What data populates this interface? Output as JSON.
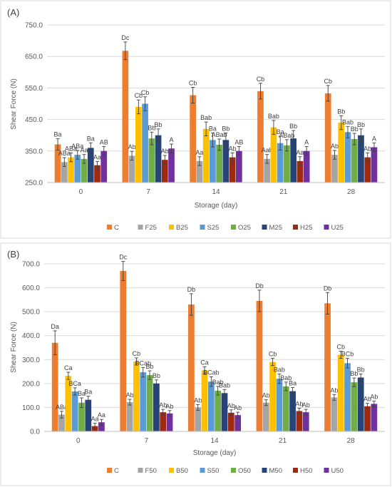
{
  "colors": {
    "C": "#ED7D31",
    "F": "#A5A5A5",
    "B": "#FFC000",
    "S": "#5B9BD5",
    "O": "#70AD47",
    "M": "#264478",
    "H": "#9E2A12",
    "U": "#7030A0",
    "error": "#404040"
  },
  "chart_data": [
    {
      "type": "bar",
      "panel_label": "(A)",
      "xlabel": "Storage (day)",
      "ylabel": "Shear Force (N)",
      "ylim": [
        250,
        750
      ],
      "yticks": [
        "250.0",
        "350.0",
        "450.0",
        "550.0",
        "650.0",
        "750.0"
      ],
      "ytick_values": [
        250,
        350,
        450,
        550,
        650,
        750
      ],
      "grid": true,
      "legend_position": "bottom",
      "categories": [
        "0",
        "7",
        "14",
        "21",
        "28"
      ],
      "series": [
        {
          "name": "C",
          "color_key": "C",
          "values": [
            371,
            668,
            527,
            540,
            533
          ],
          "errors": [
            18,
            28,
            25,
            25,
            25
          ],
          "labels": [
            "Ba",
            "Dc",
            "Cb",
            "Cb",
            "Cb"
          ]
        },
        {
          "name": "F25",
          "color_key": "F",
          "values": [
            315,
            335,
            318,
            325,
            338
          ],
          "errors": [
            14,
            14,
            14,
            14,
            14
          ],
          "labels": [
            "ABa",
            "Ab",
            "Aa",
            "Aab",
            "Ab"
          ]
        },
        {
          "name": "B25",
          "color_key": "B",
          "values": [
            330,
            490,
            420,
            425,
            440
          ],
          "errors": [
            14,
            22,
            22,
            22,
            22
          ],
          "labels": [
            "ABa",
            "Cb",
            "Bab",
            "Bab",
            "Bb"
          ]
        },
        {
          "name": "S25",
          "color_key": "S",
          "values": [
            338,
            500,
            385,
            375,
            410
          ],
          "errors": [
            14,
            22,
            22,
            22,
            18
          ],
          "labels": [
            "ABa",
            "Cb",
            "Ba",
            "Ba",
            "Bab"
          ]
        },
        {
          "name": "O25",
          "color_key": "O",
          "values": [
            325,
            390,
            370,
            368,
            388
          ],
          "errors": [
            14,
            20,
            18,
            18,
            18
          ],
          "labels": [
            "Aa",
            "Bb",
            "ABab",
            "ABab",
            "Bb"
          ]
        },
        {
          "name": "M25",
          "color_key": "M",
          "values": [
            360,
            400,
            385,
            390,
            400
          ],
          "errors": [
            16,
            20,
            22,
            25,
            20
          ],
          "labels": [
            "Ba",
            "Bb",
            "Bb",
            "Bb",
            "Bb"
          ]
        },
        {
          "name": "H25",
          "color_key": "H",
          "values": [
            305,
            322,
            330,
            318,
            330
          ],
          "errors": [
            12,
            14,
            14,
            14,
            14
          ],
          "labels": [
            "Aa",
            "Ab",
            "Ab",
            "Aa",
            "Ab"
          ]
        },
        {
          "name": "U25",
          "color_key": "U",
          "values": [
            350,
            358,
            350,
            350,
            362
          ],
          "errors": [
            14,
            14,
            14,
            14,
            14
          ],
          "labels": [
            "AB",
            "A",
            "AB",
            "A",
            "A"
          ]
        }
      ]
    },
    {
      "type": "bar",
      "panel_label": "(B)",
      "xlabel": "Storage (day)",
      "ylabel": "Shear Force (N)",
      "ylim": [
        0,
        700
      ],
      "yticks": [
        "0.0",
        "100.0",
        "200.0",
        "300.0",
        "400.0",
        "500.0",
        "600.0",
        "700.0"
      ],
      "ytick_values": [
        0,
        100,
        200,
        300,
        400,
        500,
        600,
        700
      ],
      "grid": true,
      "legend_position": "bottom",
      "categories": [
        "0",
        "7",
        "14",
        "21",
        "28"
      ],
      "series": [
        {
          "name": "C",
          "color_key": "C",
          "values": [
            370,
            670,
            530,
            545,
            535
          ],
          "errors": [
            50,
            40,
            45,
            45,
            45
          ],
          "labels": [
            "Da",
            "Dc",
            "Db",
            "Db",
            "Db"
          ]
        },
        {
          "name": "F50",
          "color_key": "F",
          "values": [
            70,
            122,
            100,
            120,
            142
          ],
          "errors": [
            14,
            12,
            12,
            12,
            12
          ],
          "labels": [
            "ABa",
            "Ab",
            "Ab",
            "Ab",
            "Ab"
          ]
        },
        {
          "name": "B50",
          "color_key": "B",
          "values": [
            232,
            292,
            255,
            290,
            320
          ],
          "errors": [
            15,
            15,
            15,
            15,
            15
          ],
          "labels": [
            "Ca",
            "Cb",
            "Ca",
            "Cb",
            "Cb"
          ]
        },
        {
          "name": "S50",
          "color_key": "S",
          "values": [
            167,
            247,
            208,
            220,
            285
          ],
          "errors": [
            15,
            20,
            20,
            20,
            20
          ],
          "labels": [
            "BCa",
            "BCab",
            "BCab",
            "Bab",
            "BCb"
          ]
        },
        {
          "name": "O50",
          "color_key": "O",
          "values": [
            120,
            235,
            170,
            188,
            205
          ],
          "errors": [
            20,
            18,
            18,
            18,
            18
          ],
          "labels": [
            "Ba",
            "Bb",
            "Bab",
            "Bab",
            "Bb"
          ]
        },
        {
          "name": "M50",
          "color_key": "M",
          "values": [
            132,
            200,
            160,
            168,
            225
          ],
          "errors": [
            15,
            15,
            15,
            15,
            15
          ],
          "labels": [
            "Ba",
            "Bb",
            "Bab",
            "Ba",
            "Bb"
          ]
        },
        {
          "name": "H50",
          "color_key": "H",
          "values": [
            22,
            80,
            78,
            85,
            105
          ],
          "errors": [
            12,
            12,
            12,
            12,
            12
          ],
          "labels": [
            "Aa",
            "Ab",
            "Ab",
            "Ab",
            "Ab"
          ]
        },
        {
          "name": "U50",
          "color_key": "U",
          "values": [
            38,
            75,
            68,
            80,
            115
          ],
          "errors": [
            12,
            12,
            12,
            12,
            12
          ],
          "labels": [
            "Aa",
            "Ab",
            "Ab",
            "Ab",
            "Ab"
          ]
        }
      ]
    }
  ]
}
